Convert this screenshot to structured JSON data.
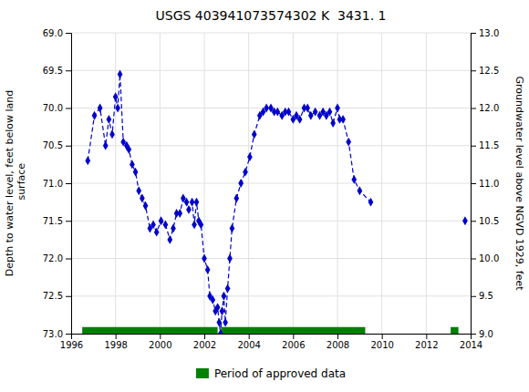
{
  "chart_data": {
    "type": "line",
    "title": "USGS 403941073574302 K  3431. 1",
    "y_label": "Depth to water level, feet below land\n surface",
    "y2_label": "Groundwater level above NGVD 1929, feet",
    "xlim": [
      1996,
      2014
    ],
    "xticks": [
      1996,
      1998,
      2000,
      2002,
      2004,
      2006,
      2008,
      2010,
      2012,
      2014
    ],
    "ylim": [
      73.0,
      69.0
    ],
    "yticks": [
      {
        "value": 69.0,
        "label": "69.0"
      },
      69.5,
      {
        "value": 70.0,
        "label": "70.0"
      },
      70.5,
      {
        "value": 71.0,
        "label": "71.0"
      },
      71.5,
      {
        "value": 72.0,
        "label": "72.0"
      },
      72.5,
      {
        "value": 73.0,
        "label": "73.0"
      }
    ],
    "y2lim": [
      9.0,
      13.0
    ],
    "y2ticks": [
      {
        "value": 9.0,
        "label": "9.0"
      },
      9.5,
      {
        "value": 10.0,
        "label": "10.0"
      },
      10.5,
      {
        "value": 11.0,
        "label": "11.0"
      },
      11.5,
      {
        "value": 12.0,
        "label": "12.0"
      },
      12.5,
      {
        "value": 13.0,
        "label": "13.0"
      }
    ],
    "grid": true,
    "legend": "bottom",
    "series": [
      {
        "type": "line",
        "color": "#0000CC",
        "line_style": "dashed",
        "marker": "diamond",
        "x": [
          1996.75,
          1997.05,
          1997.3,
          1997.55,
          1997.7,
          1997.85,
          1998.0,
          1998.1,
          1998.2,
          1998.35,
          1998.5,
          1998.6,
          1998.75,
          1998.9,
          1999.05,
          1999.2,
          1999.35,
          1999.55,
          1999.7,
          1999.85,
          2000.05,
          2000.25,
          2000.45,
          2000.6,
          2000.75,
          2000.9,
          2001.05,
          2001.2,
          2001.3,
          2001.45,
          2001.55,
          2001.65,
          2001.75,
          2001.85,
          2002.0,
          2002.15,
          2002.25,
          2002.38,
          2002.5,
          2002.6,
          2002.67,
          2002.73,
          2002.8,
          2002.88,
          2002.95,
          2003.05,
          2003.15,
          2003.25,
          2003.45,
          2003.65,
          2003.85,
          2004.05,
          2004.25,
          2004.5,
          2004.65,
          2004.8,
          2005.0,
          2005.15,
          2005.3,
          2005.5,
          2005.65,
          2005.8,
          2006.0,
          2006.15,
          2006.3,
          2006.5,
          2006.65,
          2006.8,
          2007.0,
          2007.2,
          2007.35,
          2007.5,
          2007.65,
          2007.8,
          2008.0,
          2008.1,
          2008.25,
          2008.5,
          2008.75,
          2009.0,
          2009.5
        ],
        "values": [
          70.7,
          70.1,
          70.0,
          70.5,
          70.15,
          70.35,
          69.85,
          70.0,
          69.55,
          70.45,
          70.5,
          70.55,
          70.75,
          70.85,
          71.1,
          71.2,
          71.3,
          71.6,
          71.55,
          71.65,
          71.5,
          71.55,
          71.75,
          71.6,
          71.4,
          71.4,
          71.2,
          71.25,
          71.35,
          71.25,
          71.55,
          71.25,
          71.5,
          71.55,
          72.0,
          72.15,
          72.5,
          72.55,
          72.7,
          72.65,
          72.85,
          73.0,
          72.7,
          72.5,
          72.85,
          72.4,
          72.0,
          71.6,
          71.2,
          71.0,
          70.85,
          70.65,
          70.35,
          70.1,
          70.05,
          70.0,
          70.0,
          70.05,
          70.05,
          70.1,
          70.05,
          70.05,
          70.15,
          70.1,
          70.15,
          70.0,
          70.0,
          70.1,
          70.05,
          70.1,
          70.05,
          70.1,
          70.05,
          70.2,
          70.0,
          70.15,
          70.15,
          70.45,
          70.95,
          71.1,
          71.25
        ]
      },
      {
        "type": "scatter",
        "color": "#0000CC",
        "marker": "diamond",
        "x": [
          2013.75
        ],
        "values": [
          71.5
        ]
      }
    ],
    "periods": {
      "name": "Period of approved data",
      "color": "#008000",
      "ranges": [
        [
          1996.5,
          2002.6
        ],
        [
          2002.75,
          2009.25
        ],
        [
          2013.1,
          2013.45
        ]
      ]
    }
  }
}
